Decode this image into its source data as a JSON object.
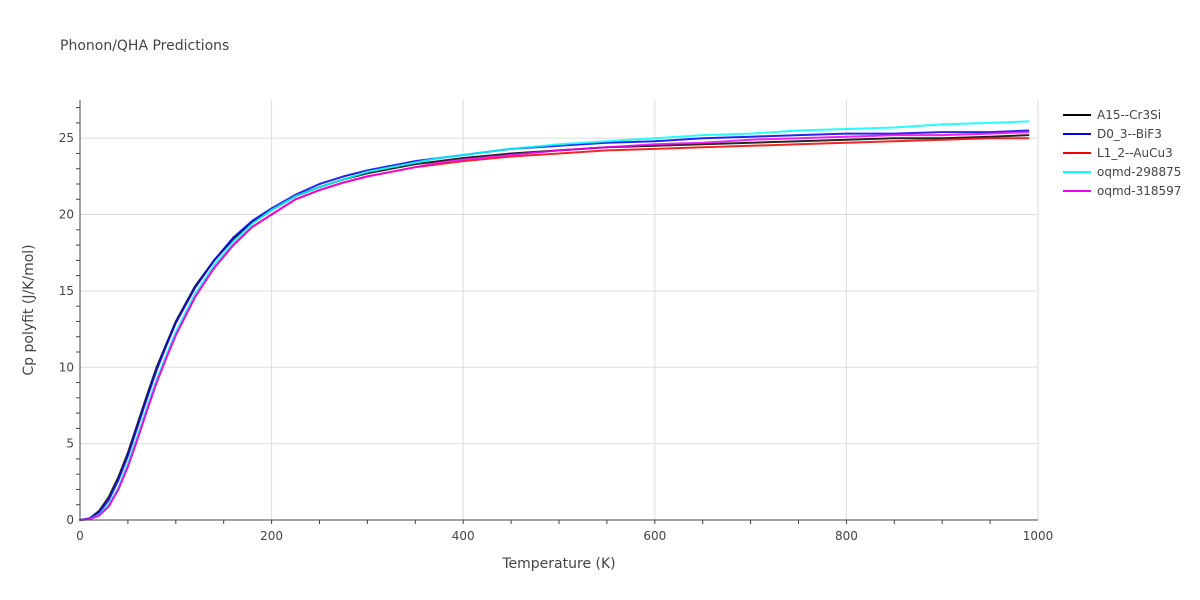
{
  "chart_data": {
    "type": "line",
    "title": "Phonon/QHA Predictions",
    "xlabel": "Temperature (K)",
    "ylabel": "Cp polyfit (J/K/mol)",
    "xlim": [
      0,
      1000
    ],
    "ylim": [
      0,
      27.5
    ],
    "xticks": [
      0,
      200,
      400,
      600,
      800,
      1000
    ],
    "xtick_labels": [
      "0",
      "200",
      "400",
      "600",
      "800",
      "1000"
    ],
    "yticks": [
      0,
      5,
      10,
      15,
      20,
      25
    ],
    "ytick_labels": [
      "0",
      "5",
      "10",
      "15",
      "20",
      "25"
    ],
    "grid": true,
    "legend_position": "top-right",
    "series": [
      {
        "name": "A15--Cr3Si",
        "color": "#000000",
        "x": [
          0,
          10,
          20,
          30,
          40,
          50,
          60,
          70,
          80,
          90,
          100,
          120,
          140,
          160,
          180,
          200,
          225,
          250,
          275,
          300,
          325,
          350,
          375,
          400,
          450,
          500,
          550,
          600,
          650,
          700,
          750,
          800,
          850,
          900,
          950,
          990
        ],
        "y": [
          0,
          0.1,
          0.6,
          1.5,
          2.8,
          4.4,
          6.3,
          8.2,
          10.0,
          11.5,
          13.0,
          15.3,
          17.0,
          18.4,
          19.5,
          20.3,
          21.2,
          21.8,
          22.3,
          22.7,
          23.0,
          23.3,
          23.5,
          23.7,
          24.0,
          24.2,
          24.4,
          24.5,
          24.6,
          24.7,
          24.8,
          24.9,
          25.0,
          25.0,
          25.1,
          25.2
        ]
      },
      {
        "name": "D0_3--BiF3",
        "color": "#0000ee",
        "x": [
          0,
          10,
          20,
          30,
          40,
          50,
          60,
          70,
          80,
          90,
          100,
          120,
          140,
          160,
          180,
          200,
          225,
          250,
          275,
          300,
          325,
          350,
          375,
          400,
          450,
          500,
          550,
          600,
          650,
          700,
          750,
          800,
          850,
          900,
          950,
          990
        ],
        "y": [
          0,
          0.1,
          0.5,
          1.3,
          2.6,
          4.2,
          6.1,
          8.0,
          9.8,
          11.4,
          12.9,
          15.2,
          17.0,
          18.5,
          19.6,
          20.4,
          21.3,
          22.0,
          22.5,
          22.9,
          23.2,
          23.5,
          23.7,
          23.9,
          24.3,
          24.5,
          24.7,
          24.8,
          25.0,
          25.1,
          25.2,
          25.3,
          25.3,
          25.4,
          25.4,
          25.5
        ]
      },
      {
        "name": "L1_2--AuCu3",
        "color": "#ee0000",
        "x": [
          0,
          10,
          20,
          30,
          40,
          50,
          60,
          70,
          80,
          90,
          100,
          120,
          140,
          160,
          180,
          200,
          225,
          250,
          275,
          300,
          325,
          350,
          375,
          400,
          450,
          500,
          550,
          600,
          650,
          700,
          750,
          800,
          850,
          900,
          950,
          990
        ],
        "y": [
          0,
          0.05,
          0.3,
          0.9,
          2.0,
          3.5,
          5.3,
          7.2,
          9.0,
          10.6,
          12.1,
          14.6,
          16.5,
          18.0,
          19.2,
          20.0,
          21.0,
          21.6,
          22.1,
          22.5,
          22.8,
          23.1,
          23.3,
          23.5,
          23.8,
          24.0,
          24.2,
          24.3,
          24.4,
          24.5,
          24.6,
          24.7,
          24.8,
          24.9,
          25.0,
          25.0
        ]
      },
      {
        "name": "oqmd-298875",
        "color": "#00ffff",
        "x": [
          0,
          10,
          20,
          30,
          40,
          50,
          60,
          70,
          80,
          90,
          100,
          120,
          140,
          160,
          180,
          200,
          225,
          250,
          275,
          300,
          325,
          350,
          375,
          400,
          450,
          500,
          550,
          600,
          650,
          700,
          750,
          800,
          850,
          900,
          950,
          990
        ],
        "y": [
          0,
          0.05,
          0.35,
          1.0,
          2.1,
          3.7,
          5.5,
          7.4,
          9.2,
          10.8,
          12.3,
          14.8,
          16.7,
          18.2,
          19.4,
          20.3,
          21.2,
          21.8,
          22.3,
          22.8,
          23.1,
          23.4,
          23.7,
          23.9,
          24.3,
          24.6,
          24.8,
          25.0,
          25.2,
          25.3,
          25.5,
          25.6,
          25.7,
          25.9,
          26.0,
          26.1
        ]
      },
      {
        "name": "oqmd-318597",
        "color": "#ee00ee",
        "x": [
          0,
          10,
          20,
          30,
          40,
          50,
          60,
          70,
          80,
          90,
          100,
          120,
          140,
          160,
          180,
          200,
          225,
          250,
          275,
          300,
          325,
          350,
          375,
          400,
          450,
          500,
          550,
          600,
          650,
          700,
          750,
          800,
          850,
          900,
          950,
          990
        ],
        "y": [
          0,
          0.05,
          0.3,
          0.9,
          2.0,
          3.5,
          5.3,
          7.2,
          9.0,
          10.6,
          12.1,
          14.6,
          16.5,
          18.0,
          19.2,
          20.0,
          21.0,
          21.6,
          22.1,
          22.5,
          22.8,
          23.1,
          23.4,
          23.6,
          23.9,
          24.2,
          24.4,
          24.6,
          24.7,
          24.9,
          25.0,
          25.1,
          25.2,
          25.2,
          25.3,
          25.4
        ]
      }
    ]
  }
}
